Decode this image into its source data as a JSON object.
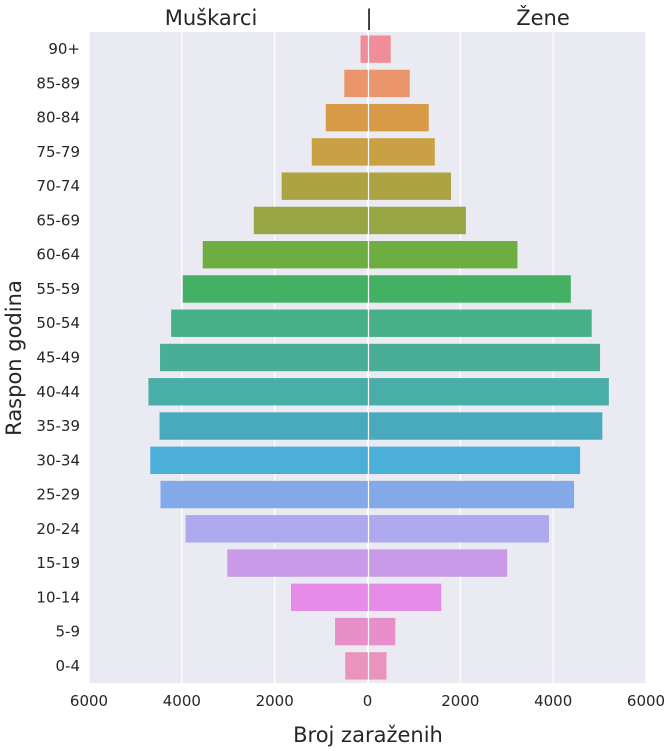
{
  "chart_data": {
    "type": "bar",
    "orientation": "horizontal",
    "layout": "population-pyramid",
    "ylabel": "Raspon godina",
    "xlabel": "Broj zaraženih",
    "side_labels": {
      "left": "Muškarci",
      "center": "|",
      "right": "Žene"
    },
    "categories": [
      "90+",
      "85-89",
      "80-84",
      "75-79",
      "70-74",
      "65-69",
      "60-64",
      "55-59",
      "50-54",
      "45-49",
      "40-44",
      "35-39",
      "30-34",
      "25-29",
      "20-24",
      "15-19",
      "10-14",
      "5-9",
      "0-4"
    ],
    "series": [
      {
        "values": [
          150,
          500,
          900,
          1200,
          1850,
          2450,
          3550,
          3980,
          4230,
          4470,
          4720,
          4480,
          4680,
          4460,
          3920,
          3020,
          1650,
          700,
          480
        ]
      },
      {
        "values": [
          500,
          910,
          1320,
          1450,
          1800,
          2120,
          3230,
          4380,
          4830,
          5010,
          5200,
          5060,
          4580,
          4450,
          3910,
          3010,
          1590,
          600,
          410
        ]
      }
    ],
    "xlim": [
      -6000,
      6000
    ],
    "xticks": [
      -6000,
      -4000,
      -2000,
      0,
      2000,
      4000,
      6000
    ],
    "xtick_labels": [
      "6000",
      "4000",
      "2000",
      "0",
      "2000",
      "4000",
      "6000"
    ],
    "grid": true,
    "colors": [
      "#ef8e98",
      "#ea956c",
      "#d99a48",
      "#c9a043",
      "#aea342",
      "#98a543",
      "#6ead40",
      "#43b063",
      "#47b088",
      "#49ae95",
      "#4aaea8",
      "#4aaabd",
      "#4cafd9",
      "#83a9e9",
      "#aea8ed",
      "#c89ae8",
      "#e68be8",
      "#e88fca",
      "#ea94bd"
    ],
    "plot_bg": "#eaeaf2"
  }
}
